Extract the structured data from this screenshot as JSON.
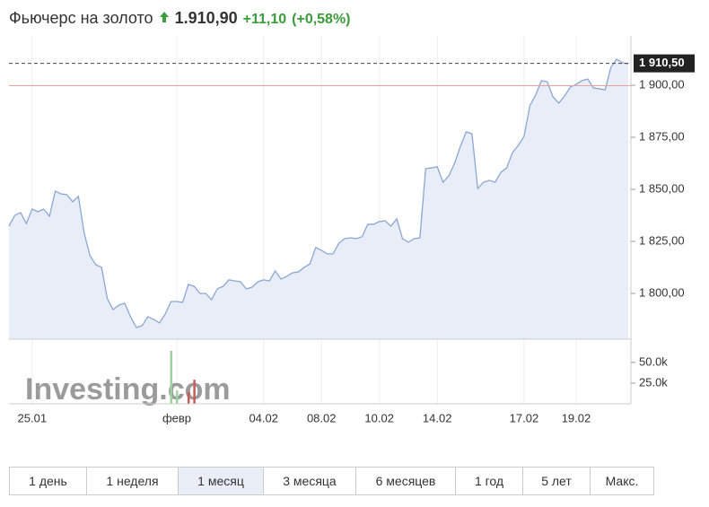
{
  "header": {
    "title": "Фьючерс на золото",
    "price": "1.910,90",
    "change": "+11,10",
    "change_percent": "(+0,58%)"
  },
  "chart_data": {
    "type": "area",
    "color": "#8aa7d3",
    "fill": "#e9edf7",
    "categories": [
      null,
      null,
      null,
      null,
      "25.01",
      null,
      null,
      null,
      null,
      null,
      null,
      null,
      null,
      null,
      null,
      null,
      null,
      null,
      null,
      null,
      null,
      null,
      null,
      null,
      null,
      null,
      null,
      null,
      null,
      "февр",
      null,
      null,
      null,
      null,
      null,
      null,
      null,
      null,
      null,
      null,
      null,
      null,
      null,
      null,
      "04.02",
      null,
      null,
      null,
      null,
      null,
      null,
      null,
      null,
      null,
      "08.02",
      null,
      null,
      null,
      null,
      null,
      null,
      null,
      null,
      null,
      "10.02",
      null,
      null,
      null,
      null,
      null,
      null,
      null,
      null,
      null,
      "14.02",
      null,
      null,
      null,
      null,
      null,
      null,
      null,
      null,
      null,
      null,
      null,
      null,
      null,
      null,
      "17.02",
      null,
      null,
      null,
      null,
      null,
      null,
      null,
      null,
      "19.02",
      null,
      null,
      null,
      null,
      null,
      null,
      null,
      null,
      null
    ],
    "values": [
      1832.3,
      1837.5,
      1838.8,
      1833.6,
      1840.5,
      1839.2,
      1840.5,
      1837.1,
      1849.1,
      1847.8,
      1847.4,
      1844.0,
      1846.6,
      1828.9,
      1818.1,
      1813.8,
      1812.5,
      1797.4,
      1792.2,
      1794.4,
      1795.3,
      1788.8,
      1783.6,
      1784.5,
      1788.8,
      1787.5,
      1785.8,
      1790.1,
      1796.1,
      1796.1,
      1795.7,
      1804.3,
      1803.4,
      1800.0,
      1800.0,
      1797.0,
      1802.2,
      1803.4,
      1806.5,
      1806.0,
      1805.6,
      1802.2,
      1803.0,
      1805.6,
      1806.5,
      1806.0,
      1810.8,
      1806.9,
      1808.2,
      1809.9,
      1810.3,
      1812.5,
      1814.2,
      1822.0,
      1820.7,
      1819.0,
      1819.0,
      1824.1,
      1826.3,
      1826.7,
      1826.3,
      1827.2,
      1833.2,
      1833.2,
      1834.5,
      1834.9,
      1832.3,
      1835.8,
      1826.3,
      1824.6,
      1826.3,
      1826.7,
      1859.9,
      1860.3,
      1860.8,
      1853.4,
      1856.5,
      1862.5,
      1870.7,
      1877.6,
      1876.7,
      1850.4,
      1853.4,
      1854.3,
      1853.4,
      1858.2,
      1860.3,
      1867.7,
      1871.1,
      1875.4,
      1890.1,
      1895.3,
      1902.2,
      1901.7,
      1894.4,
      1891.4,
      1894.8,
      1899.1,
      1900.4,
      1902.2,
      1903.0,
      1898.7,
      1898.3,
      1897.8,
      1908.6,
      1912.5,
      1910.8,
      1910.3
    ],
    "ylim": [
      1778,
      1923.7
    ],
    "yticks": [
      {
        "value": 1800,
        "label": "1 800,00"
      },
      {
        "value": 1825,
        "label": "1 825,00"
      },
      {
        "value": 1850,
        "label": "1 850,00"
      },
      {
        "value": 1875,
        "label": "1 875,00"
      },
      {
        "value": 1900,
        "label": "1 900,00"
      }
    ],
    "last_price": {
      "value": 1910.5,
      "label": "1 910,50"
    },
    "reference_line": {
      "value": 1899.8,
      "color": "#e8a0a0"
    },
    "watermark": "Investing.com",
    "volume": {
      "ylim": [
        0,
        78000
      ],
      "yticks": [
        {
          "value": 25000,
          "label": "25.0k"
        },
        {
          "value": 50000,
          "label": "50.0k"
        }
      ],
      "series": [
        {
          "color": "#9fd19f",
          "values": [
            null,
            null,
            null,
            null,
            null,
            null,
            null,
            null,
            null,
            null,
            null,
            null,
            null,
            null,
            null,
            null,
            null,
            null,
            null,
            null,
            null,
            null,
            null,
            null,
            null,
            null,
            null,
            null,
            64000,
            16000,
            null,
            null,
            null,
            null,
            null,
            null,
            null,
            null,
            null,
            null,
            null,
            null,
            null,
            null,
            null,
            null,
            null,
            null,
            null,
            null,
            null,
            null,
            null,
            null,
            null,
            null,
            null,
            null,
            null,
            null,
            null,
            null,
            null,
            null,
            null,
            null,
            null,
            null,
            null,
            null,
            null,
            null,
            null,
            null,
            null,
            null,
            null,
            null,
            null,
            null,
            null,
            null,
            null,
            null,
            null,
            null,
            null,
            null,
            null,
            null,
            null,
            null,
            null,
            null,
            null,
            null,
            null,
            null,
            null,
            null,
            null,
            null,
            null,
            null,
            null,
            null,
            null,
            null
          ]
        },
        {
          "color": "#c85a5a",
          "values": [
            null,
            null,
            null,
            null,
            null,
            null,
            null,
            null,
            null,
            null,
            null,
            null,
            null,
            null,
            null,
            null,
            null,
            null,
            null,
            null,
            null,
            null,
            null,
            null,
            null,
            null,
            null,
            null,
            null,
            null,
            null,
            14000,
            29000,
            null,
            null,
            null,
            null,
            null,
            null,
            null,
            null,
            null,
            null,
            null,
            null,
            null,
            null,
            null,
            null,
            null,
            null,
            null,
            null,
            null,
            null,
            null,
            null,
            null,
            null,
            null,
            null,
            null,
            null,
            null,
            null,
            null,
            null,
            null,
            null,
            null,
            null,
            null,
            null,
            null,
            null,
            null,
            null,
            null,
            null,
            null,
            null,
            null,
            null,
            null,
            null,
            null,
            null,
            null,
            null,
            null,
            null,
            null,
            null,
            null,
            null,
            null,
            null,
            null,
            null,
            null,
            null,
            null,
            null,
            null,
            null,
            null,
            null,
            null
          ]
        }
      ]
    }
  },
  "range_buttons": [
    "1 день",
    "1 неделя",
    "1 месяц",
    "3 месяца",
    "6 месяцев",
    "1 год",
    "5 лет",
    "Макс."
  ],
  "active_range": 2
}
